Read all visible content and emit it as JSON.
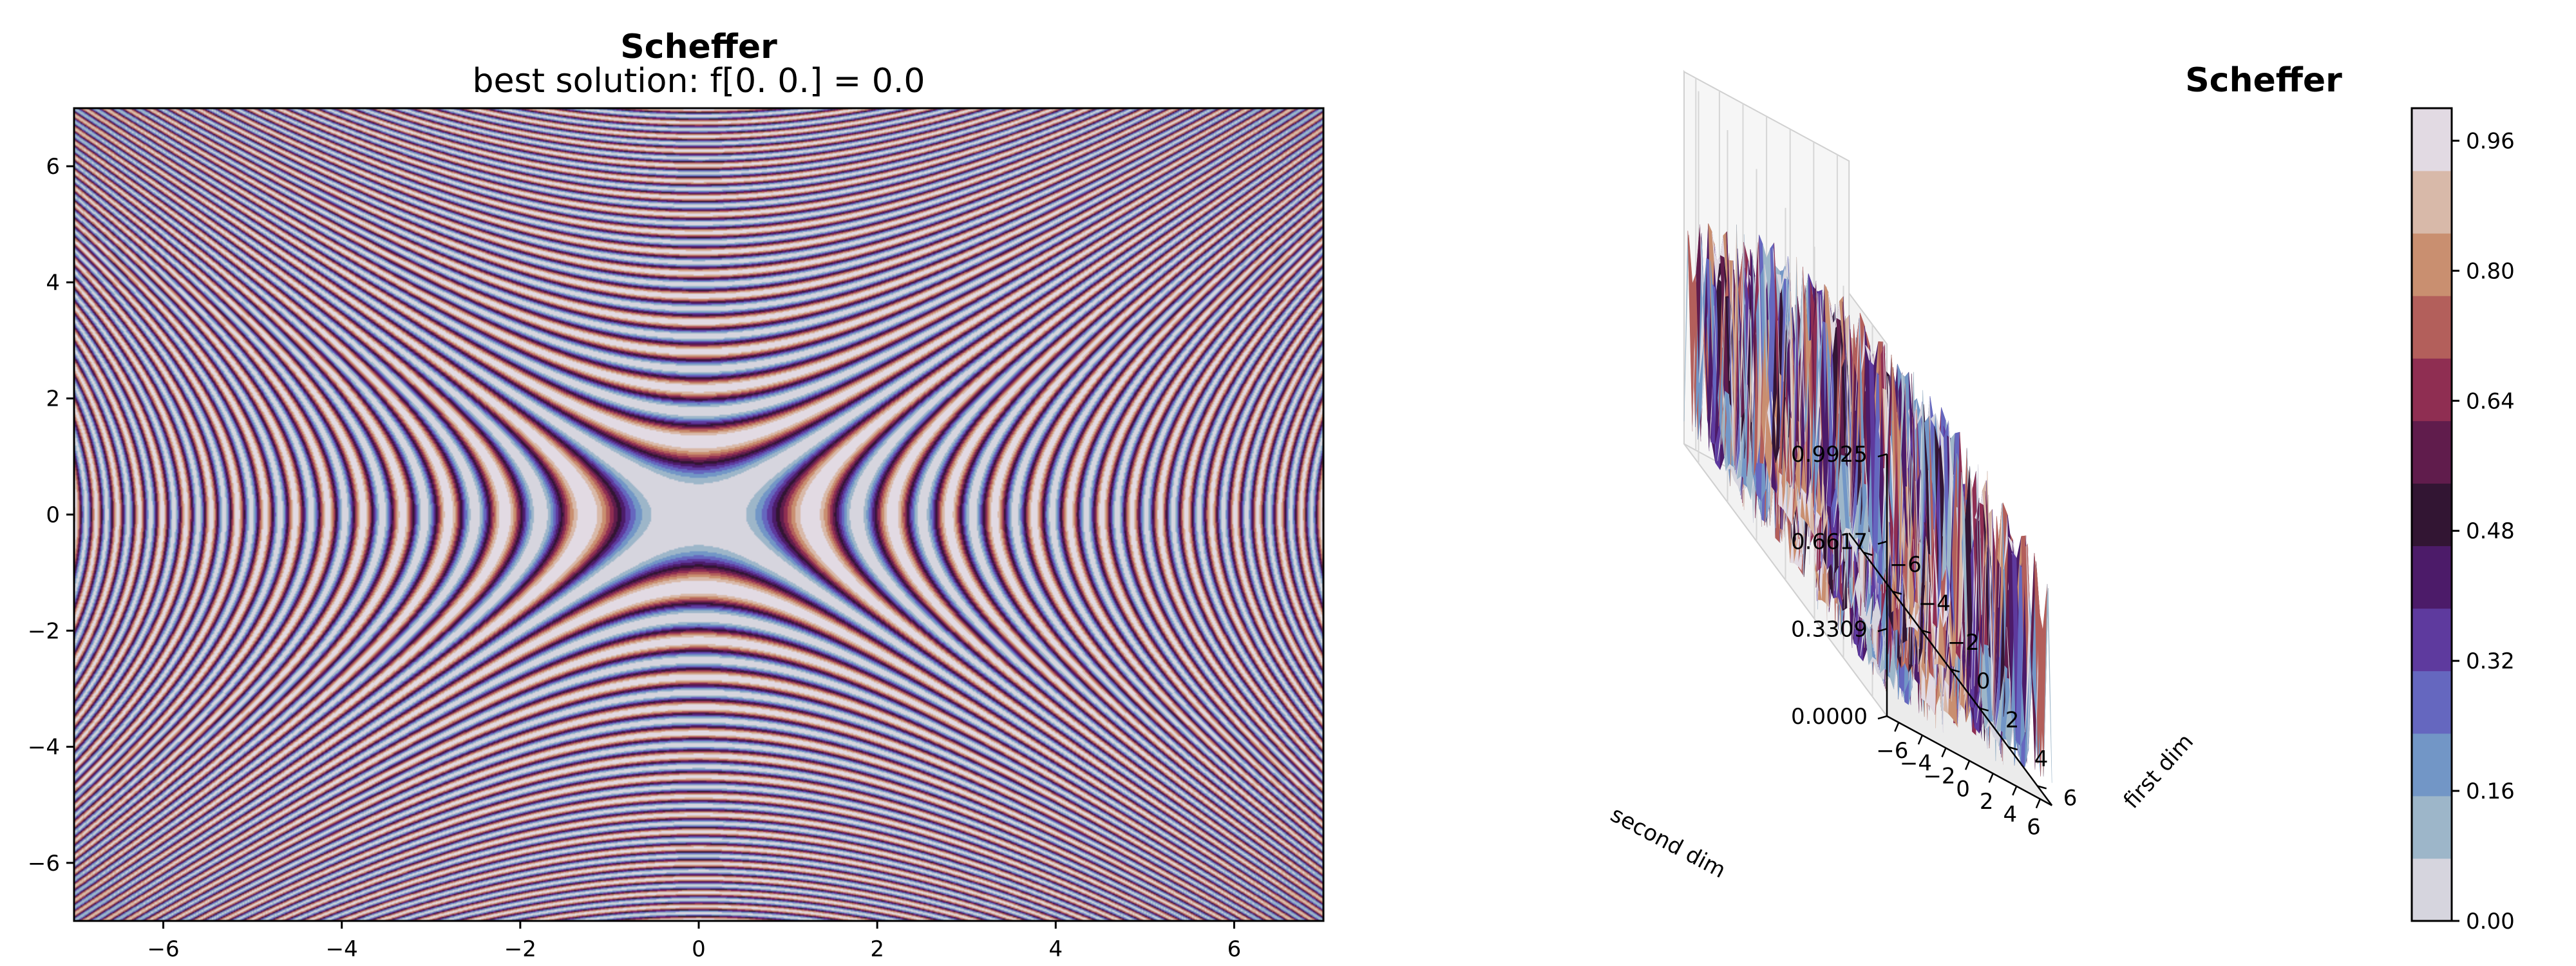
{
  "chart_data": [
    {
      "type": "contour",
      "title": "Scheffer",
      "subtitle": "best solution: f[0. 0.] = 0.0",
      "xlim": [
        -7,
        7
      ],
      "ylim": [
        -7,
        7
      ],
      "xticks": [
        -6,
        -4,
        -2,
        0,
        2,
        4,
        6
      ],
      "yticks": [
        -6,
        -4,
        -2,
        0,
        2,
        4,
        6
      ],
      "xtick_labels": [
        "−6",
        "−4",
        "−2",
        "0",
        "2",
        "4",
        "6"
      ],
      "ytick_labels": [
        "6",
        "4",
        "2",
        "0",
        "−2",
        "−4",
        "−6"
      ],
      "best_solution": {
        "x": 0.0,
        "y": 0.0,
        "f": 0.0
      },
      "colormap": "twilight"
    },
    {
      "type": "surface3d",
      "title": "Scheffer",
      "xlabel": "first dim",
      "ylabel": "second dim",
      "xlim": [
        -7,
        7
      ],
      "ylim": [
        -7,
        7
      ],
      "zlim": [
        0,
        0.9925
      ],
      "first_dim_tick_labels": [
        "−6",
        "−4",
        "−2",
        "0",
        "2",
        "4",
        "6"
      ],
      "second_dim_tick_labels": [
        "−6",
        "−4",
        "−2",
        "0",
        "2",
        "4",
        "6"
      ],
      "z_tick_labels": [
        "0.0000",
        "0.3309",
        "0.6617",
        "0.9925"
      ]
    },
    {
      "type": "colorbar",
      "range": [
        0,
        1
      ],
      "levels": 13,
      "tick_labels": [
        "0.00",
        "0.16",
        "0.32",
        "0.48",
        "0.64",
        "0.80",
        "0.96"
      ],
      "colors": [
        "#d6d5de",
        "#9db6c9",
        "#7296c6",
        "#6567bf",
        "#5e3a9e",
        "#4c1b69",
        "#321533",
        "#601c4c",
        "#8f2e52",
        "#b35f5b",
        "#c98f70",
        "#d8b9a9",
        "#e2dae3"
      ]
    }
  ]
}
